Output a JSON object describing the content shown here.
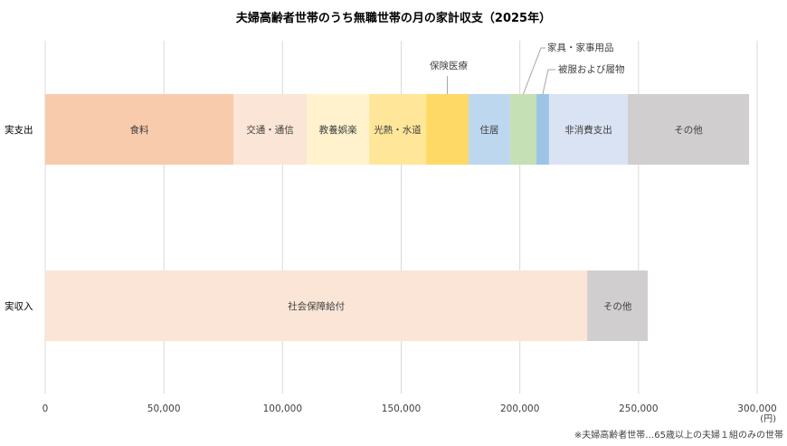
{
  "chart_data": {
    "type": "bar",
    "orientation": "horizontal",
    "stacked": true,
    "title": "夫婦高齢者世帯のうち無職世帯の月の家計収支（2025年）",
    "unit_label": "(円)",
    "footnote": "※夫婦高齢者世帯…65歳以上の夫婦１組のみの世帯",
    "xlim": [
      0,
      300000
    ],
    "xticks": [
      0,
      50000,
      100000,
      150000,
      200000,
      250000,
      300000
    ],
    "xtick_labels": [
      "0",
      "50,000",
      "100,000",
      "150,000",
      "200,000",
      "250,000",
      "300,000"
    ],
    "grid": true,
    "bars": [
      {
        "category": "実支出",
        "segments": [
          {
            "name": "食料",
            "value": 79300,
            "color": "#F8CBAD",
            "label_position": "inside"
          },
          {
            "name": "交通・通信",
            "value": 30900,
            "color": "#FBE5D6",
            "label_position": "inside"
          },
          {
            "name": "教養娯楽",
            "value": 26300,
            "color": "#FFF2CC",
            "label_position": "inside"
          },
          {
            "name": "光熱・水道",
            "value": 24000,
            "color": "#FFE699",
            "label_position": "inside"
          },
          {
            "name": "保険医療",
            "value": 17900,
            "color": "#FFD966",
            "label_position": "callout"
          },
          {
            "name": "住居",
            "value": 17500,
            "color": "#BDD7EE",
            "label_position": "inside"
          },
          {
            "name": "家具・家事用品",
            "value": 11100,
            "color": "#C5E0B4",
            "label_position": "callout"
          },
          {
            "name": "被服および履物",
            "value": 5300,
            "color": "#9DC3E6",
            "label_position": "callout"
          },
          {
            "name": "非消費支出",
            "value": 33200,
            "color": "#DAE3F3",
            "label_position": "inside"
          },
          {
            "name": "その他",
            "value": 51100,
            "color": "#D0CECE",
            "label_position": "inside"
          }
        ]
      },
      {
        "category": "実収入",
        "segments": [
          {
            "name": "社会保障給付",
            "value": 228400,
            "color": "#FBE5D6",
            "label_position": "inside"
          },
          {
            "name": "その他",
            "value": 25500,
            "color": "#D0CECE",
            "label_position": "inside"
          }
        ]
      }
    ]
  }
}
